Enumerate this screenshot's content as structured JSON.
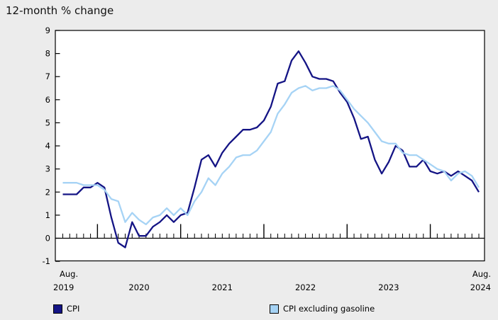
{
  "title": "12-month % change",
  "legend": {
    "items": [
      {
        "label": "CPI",
        "color": "#141485"
      },
      {
        "label": "CPI excluding gasoline",
        "color": "#a6d3f5"
      }
    ]
  },
  "chart_data": {
    "type": "line",
    "title": "12-month % change",
    "xlabel": "",
    "ylabel": "12-month % change",
    "x_unit": "month",
    "x_start": "Aug. 2019",
    "x_end": "Aug. 2024",
    "n_points": 61,
    "ylim": [
      -1,
      9
    ],
    "y_ticks": [
      -1,
      0,
      1,
      2,
      3,
      4,
      5,
      6,
      7,
      8,
      9
    ],
    "x_axis_labels": {
      "first": [
        "Aug.",
        "2019"
      ],
      "years": [
        "2020",
        "2021",
        "2022",
        "2023"
      ],
      "last": [
        "Aug.",
        "2024"
      ]
    },
    "grid": false,
    "legend_position": "bottom",
    "series": [
      {
        "name": "CPI",
        "color": "#141485",
        "values": [
          1.9,
          1.9,
          1.9,
          2.2,
          2.2,
          2.4,
          2.2,
          0.9,
          -0.2,
          -0.4,
          0.7,
          0.1,
          0.1,
          0.5,
          0.7,
          1.0,
          0.7,
          1.0,
          1.1,
          2.2,
          3.4,
          3.6,
          3.1,
          3.7,
          4.1,
          4.4,
          4.7,
          4.7,
          4.8,
          5.1,
          5.7,
          6.7,
          6.8,
          7.7,
          8.1,
          7.6,
          7.0,
          6.9,
          6.9,
          6.8,
          6.3,
          5.9,
          5.2,
          4.3,
          4.4,
          3.4,
          2.8,
          3.3,
          4.0,
          3.8,
          3.1,
          3.1,
          3.4,
          2.9,
          2.8,
          2.9,
          2.7,
          2.9,
          2.7,
          2.5,
          2.0
        ]
      },
      {
        "name": "CPI excluding gasoline",
        "color": "#a6d3f5",
        "values": [
          2.4,
          2.4,
          2.4,
          2.3,
          2.3,
          2.3,
          2.1,
          1.7,
          1.6,
          0.7,
          1.1,
          0.8,
          0.6,
          0.9,
          1.0,
          1.3,
          1.0,
          1.3,
          1.0,
          1.6,
          2.0,
          2.6,
          2.3,
          2.8,
          3.1,
          3.5,
          3.6,
          3.6,
          3.8,
          4.2,
          4.6,
          5.4,
          5.8,
          6.3,
          6.5,
          6.6,
          6.4,
          6.5,
          6.5,
          6.6,
          6.4,
          6.0,
          5.6,
          5.3,
          5.0,
          4.6,
          4.2,
          4.1,
          4.1,
          3.7,
          3.6,
          3.6,
          3.4,
          3.2,
          3.0,
          2.9,
          2.5,
          2.8,
          2.9,
          2.7,
          2.2
        ]
      }
    ]
  }
}
